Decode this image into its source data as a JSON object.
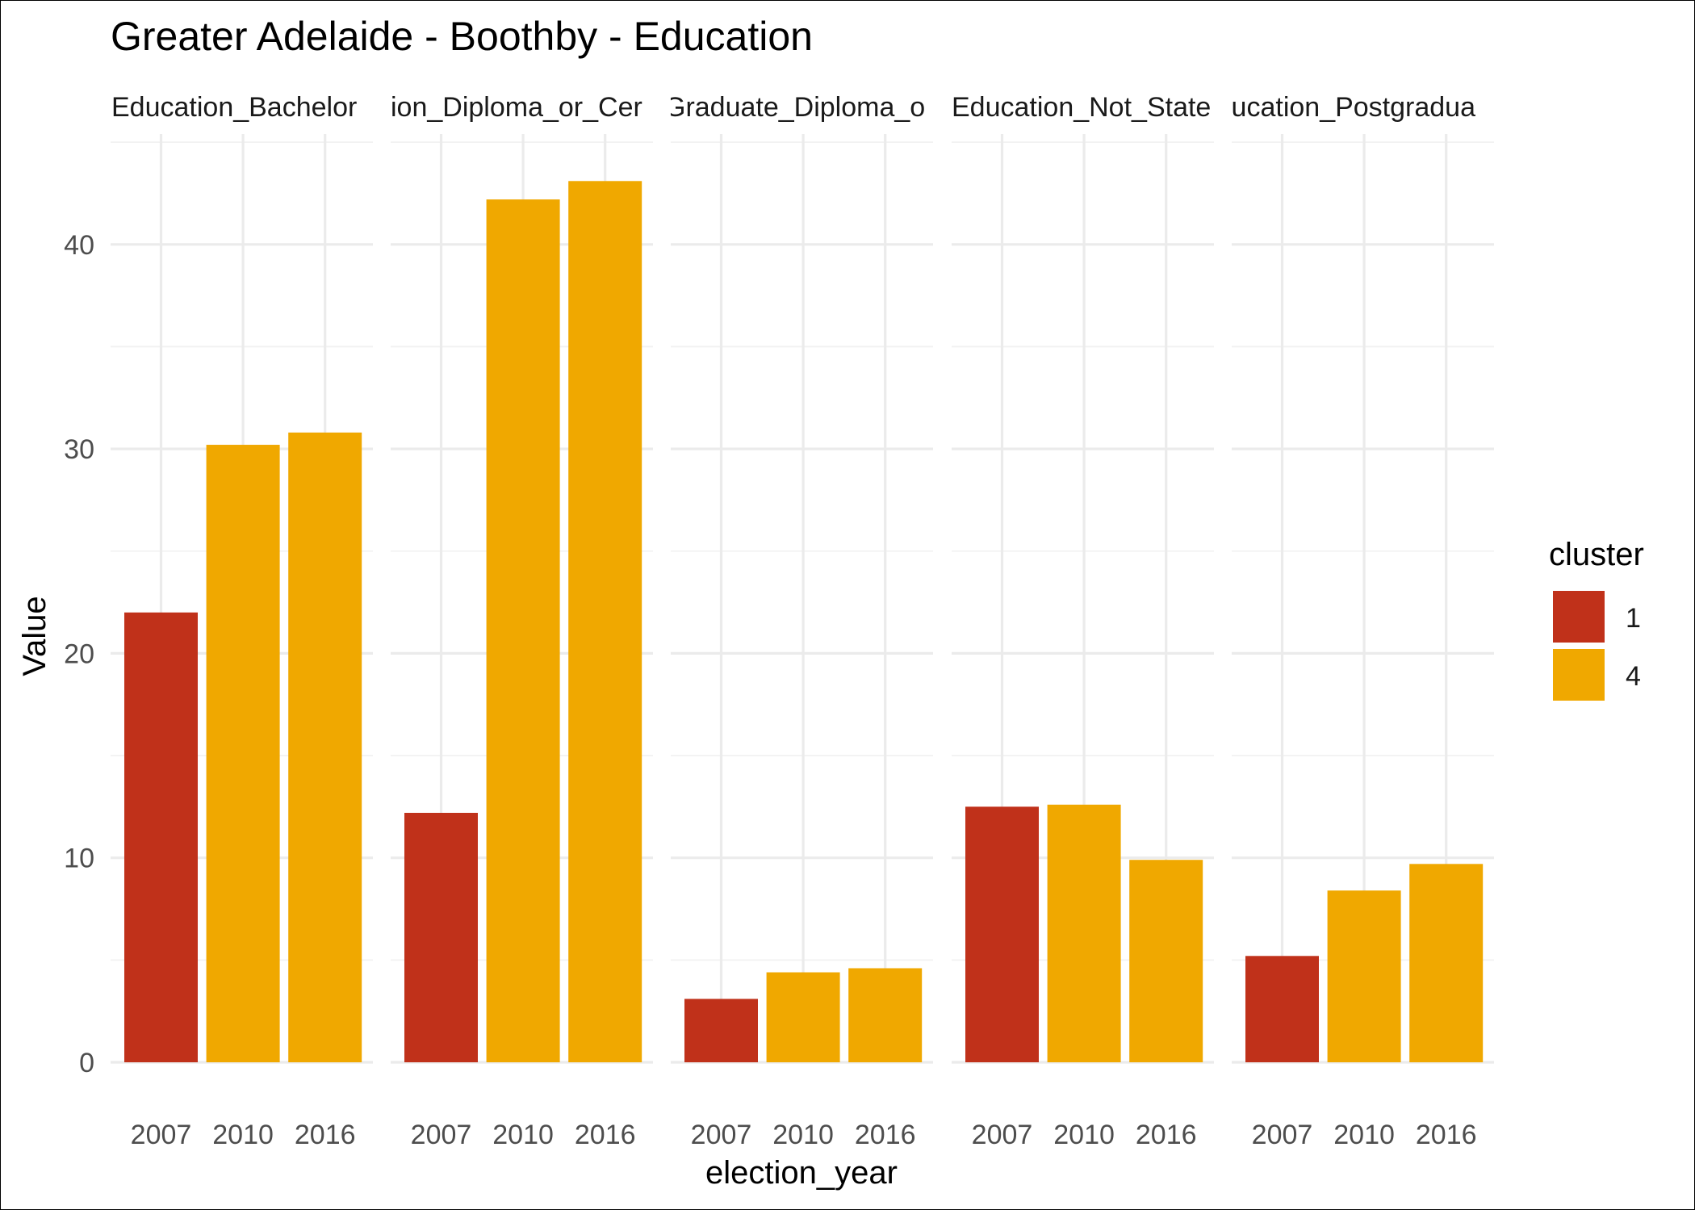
{
  "chart_data": {
    "type": "bar",
    "title": "Greater Adelaide - Boothby - Education",
    "xlabel": "election_year",
    "ylabel": "Value",
    "ylim": [
      0,
      45
    ],
    "y_ticks": [
      "0",
      "10",
      "20",
      "30",
      "40"
    ],
    "categories": [
      "2007",
      "2010",
      "2016"
    ],
    "grid": true,
    "legend": {
      "title": "cluster",
      "position": "right",
      "entries": [
        {
          "label": "1",
          "color": "#C0311A"
        },
        {
          "label": "4",
          "color": "#F0A800"
        }
      ]
    },
    "facets": [
      {
        "label": "Education_Bachelor",
        "values": [
          22.0,
          30.2,
          30.8
        ],
        "clusters": [
          "1",
          "4",
          "4"
        ]
      },
      {
        "label": "ion_Diploma_or_Cer",
        "values": [
          12.2,
          42.2,
          43.1
        ],
        "clusters": [
          "1",
          "4",
          "4"
        ]
      },
      {
        "label": "Graduate_Diploma_o",
        "values": [
          3.1,
          4.4,
          4.6
        ],
        "clusters": [
          "1",
          "4",
          "4"
        ]
      },
      {
        "label": "Education_Not_State",
        "values": [
          12.5,
          12.6,
          9.9
        ],
        "clusters": [
          "1",
          "4",
          "4"
        ]
      },
      {
        "label": "lucation_Postgradua",
        "values": [
          5.2,
          8.4,
          9.7
        ],
        "clusters": [
          "1",
          "4",
          "4"
        ]
      }
    ]
  }
}
